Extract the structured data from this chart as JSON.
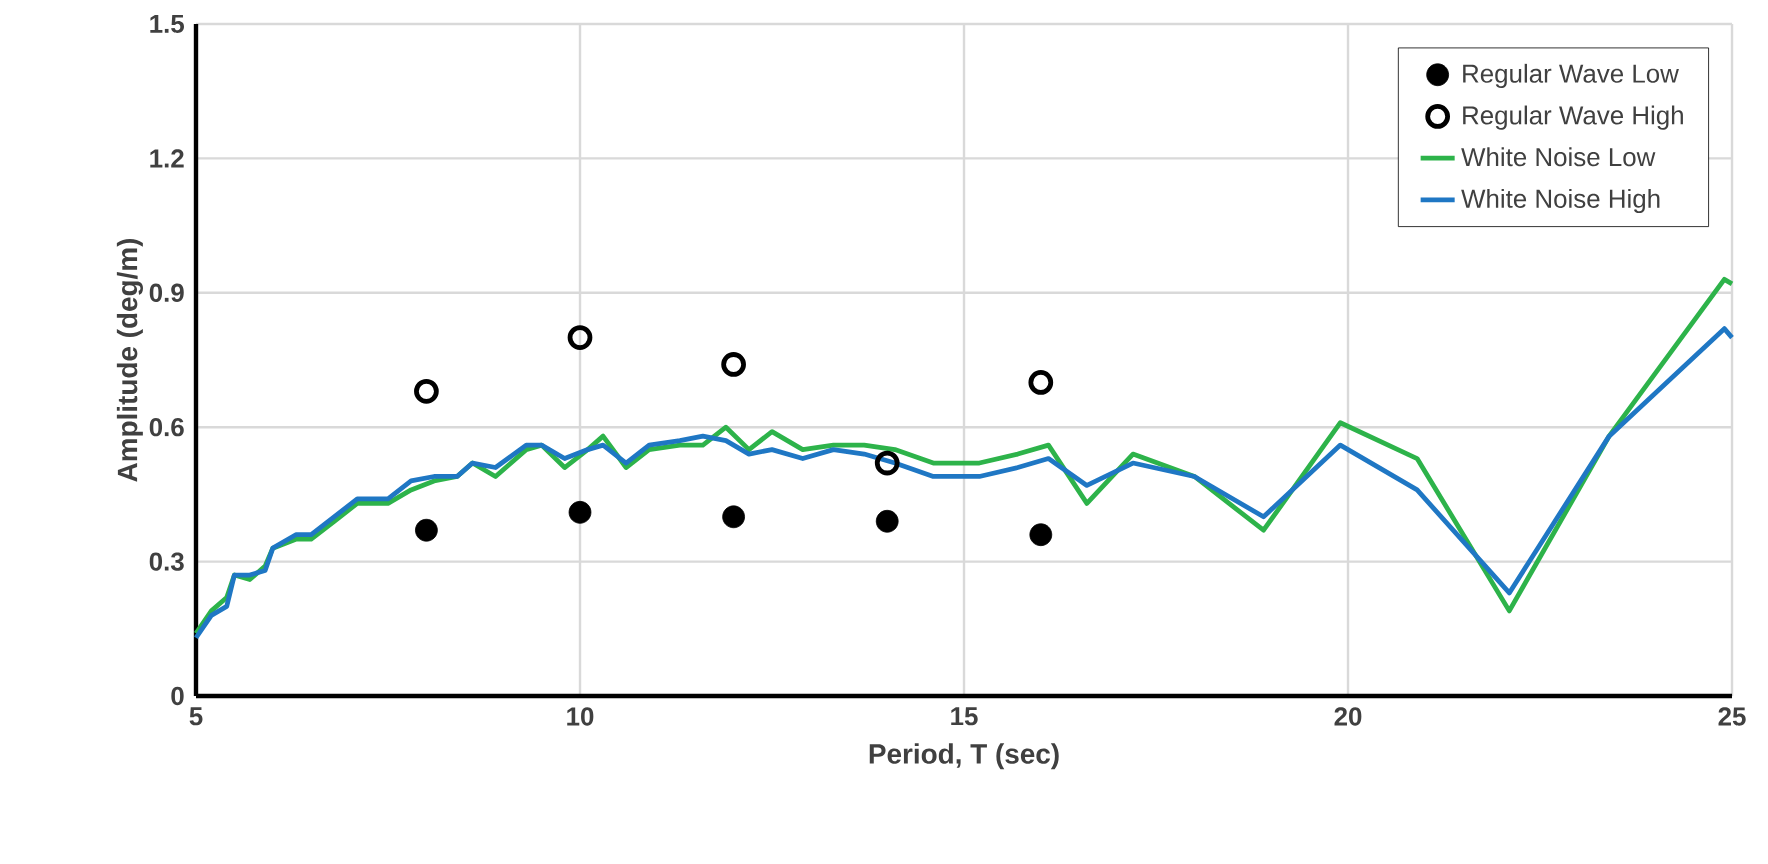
{
  "chart_data": {
    "type": "line",
    "xlabel": "Period, T (sec)",
    "ylabel": "Amplitude (deg/m)",
    "xlim": [
      5,
      25
    ],
    "ylim": [
      0,
      1.5
    ],
    "xticks": [
      5,
      10,
      15,
      20,
      25
    ],
    "yticks": [
      {
        "value": 0,
        "label": "0"
      },
      {
        "value": 0.3,
        "label": "0.3"
      },
      {
        "value": 0.6,
        "label": "0.6"
      },
      {
        "value": 0.9,
        "label": "0.9"
      },
      {
        "value": 1.2,
        "label": "1.2"
      },
      {
        "value": 1.5,
        "label": "1.5"
      }
    ],
    "grid": true,
    "legend": "top right",
    "series": [
      {
        "name": "Regular Wave Low",
        "type": "scatter",
        "marker": "circle",
        "color": "#000000",
        "x": [
          8,
          10,
          12,
          14,
          16
        ],
        "values": [
          0.37,
          0.41,
          0.4,
          0.39,
          0.36
        ]
      },
      {
        "name": "Regular Wave High",
        "type": "scatter",
        "marker": "circle-open",
        "color": "#000000",
        "x": [
          8,
          10,
          12,
          14,
          16
        ],
        "values": [
          0.68,
          0.8,
          0.74,
          0.52,
          0.7
        ]
      },
      {
        "name": "White Noise Low",
        "marker": "none",
        "color": "#2db34a",
        "x": [
          5,
          5.2,
          5.4,
          5.5,
          5.7,
          5.9,
          6.0,
          6.3,
          6.5,
          6.8,
          7.1,
          7.5,
          7.8,
          8.1,
          8.4,
          8.6,
          8.9,
          9.3,
          9.5,
          9.8,
          10.1,
          10.3,
          10.6,
          10.9,
          11.3,
          11.6,
          11.9,
          12.2,
          12.5,
          12.9,
          13.3,
          13.7,
          14.1,
          14.6,
          15.2,
          15.7,
          16.1,
          16.6,
          17.2,
          18.0,
          18.9,
          19.9,
          20.9,
          22.1,
          23.4,
          24.9,
          25
        ],
        "values": [
          0.14,
          0.19,
          0.22,
          0.27,
          0.26,
          0.29,
          0.33,
          0.35,
          0.35,
          0.39,
          0.43,
          0.43,
          0.46,
          0.48,
          0.49,
          0.52,
          0.49,
          0.55,
          0.56,
          0.51,
          0.55,
          0.58,
          0.51,
          0.55,
          0.56,
          0.56,
          0.6,
          0.55,
          0.59,
          0.55,
          0.56,
          0.56,
          0.55,
          0.52,
          0.52,
          0.54,
          0.56,
          0.43,
          0.54,
          0.49,
          0.37,
          0.61,
          0.53,
          0.19,
          0.58,
          0.93,
          0.92
        ]
      },
      {
        "name": "White Noise High",
        "marker": "none",
        "color": "#1f77c4",
        "x": [
          5,
          5.2,
          5.4,
          5.5,
          5.7,
          5.9,
          6.0,
          6.3,
          6.5,
          6.8,
          7.1,
          7.5,
          7.8,
          8.1,
          8.4,
          8.6,
          8.9,
          9.3,
          9.5,
          9.8,
          10.1,
          10.3,
          10.6,
          10.9,
          11.3,
          11.6,
          11.9,
          12.2,
          12.5,
          12.9,
          13.3,
          13.7,
          14.1,
          14.6,
          15.2,
          15.7,
          16.1,
          16.6,
          17.2,
          18.0,
          18.9,
          19.9,
          20.9,
          22.1,
          23.4,
          24.9,
          25
        ],
        "values": [
          0.13,
          0.18,
          0.2,
          0.27,
          0.27,
          0.28,
          0.33,
          0.36,
          0.36,
          0.4,
          0.44,
          0.44,
          0.48,
          0.49,
          0.49,
          0.52,
          0.51,
          0.56,
          0.56,
          0.53,
          0.55,
          0.56,
          0.52,
          0.56,
          0.57,
          0.58,
          0.57,
          0.54,
          0.55,
          0.53,
          0.55,
          0.54,
          0.52,
          0.49,
          0.49,
          0.51,
          0.53,
          0.47,
          0.52,
          0.49,
          0.4,
          0.56,
          0.46,
          0.23,
          0.58,
          0.82,
          0.8
        ]
      }
    ]
  }
}
